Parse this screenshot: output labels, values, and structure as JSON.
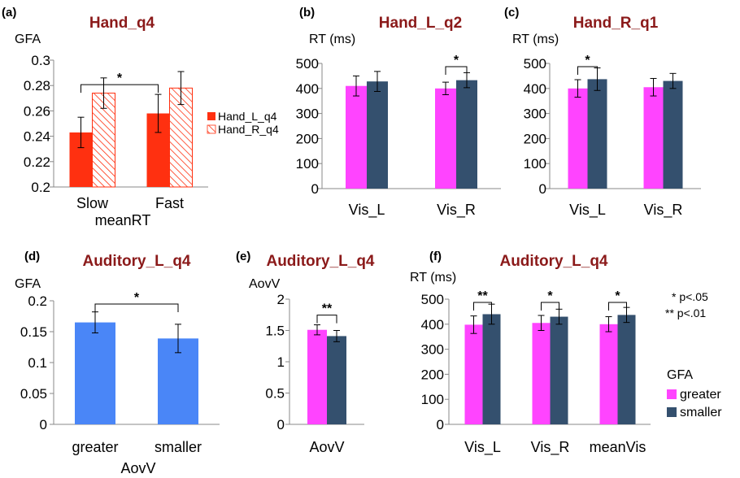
{
  "colors": {
    "title": "#8b1a1a",
    "red": "#ff3010",
    "redHatch": "#ff3010",
    "magenta": "#ff44ff",
    "navy": "#34506e",
    "blue": "#4a86f7",
    "axis": "#888888"
  },
  "notes": [
    "* p<.05",
    "** p<.01"
  ],
  "legend_f": {
    "title": "GFA",
    "items": [
      "greater",
      "smaller"
    ]
  },
  "chart_data": [
    {
      "id": "a",
      "panel_label": "(a)",
      "type": "bar",
      "title": "Hand_q4",
      "ylabel": "GFA",
      "xlabel": "meanRT",
      "ylim": [
        0.2,
        0.3
      ],
      "ytick_step": 0.02,
      "ytick_labels": [
        "0.2",
        "0.22",
        "0.24",
        "0.26",
        "0.28",
        "0.3"
      ],
      "categories": [
        "Slow",
        "Fast"
      ],
      "series": [
        {
          "name": "Hand_L_q4",
          "style": "red",
          "values": [
            0.243,
            0.258
          ],
          "errors": [
            0.012,
            0.015
          ]
        },
        {
          "name": "Hand_R_q4",
          "style": "hatch",
          "values": [
            0.274,
            0.278
          ],
          "errors": [
            0.012,
            0.013
          ]
        }
      ],
      "legend": [
        "Hand_L_q4",
        "Hand_R_q4"
      ],
      "significance": [
        {
          "label": "*",
          "from": [
            0,
            0
          ],
          "to": [
            1,
            0
          ]
        }
      ]
    },
    {
      "id": "b",
      "panel_label": "(b)",
      "type": "bar",
      "title": "Hand_L_q2",
      "ylabel": "RT (ms)",
      "ylim": [
        0,
        500
      ],
      "ytick_step": 100,
      "ytick_labels": [
        "0",
        "100",
        "200",
        "300",
        "400",
        "500"
      ],
      "categories": [
        "Vis_L",
        "Vis_R"
      ],
      "series": [
        {
          "name": "greater",
          "style": "magenta",
          "values": [
            410,
            400
          ],
          "errors": [
            40,
            25
          ]
        },
        {
          "name": "smaller",
          "style": "navy",
          "values": [
            428,
            433
          ],
          "errors": [
            40,
            30
          ]
        }
      ],
      "significance": [
        {
          "label": "*",
          "from": [
            1,
            0
          ],
          "to": [
            1,
            1
          ]
        }
      ]
    },
    {
      "id": "c",
      "panel_label": "(c)",
      "type": "bar",
      "title": "Hand_R_q1",
      "ylabel": "RT (ms)",
      "ylim": [
        0,
        500
      ],
      "ytick_step": 100,
      "ytick_labels": [
        "0",
        "100",
        "200",
        "300",
        "400",
        "500"
      ],
      "categories": [
        "Vis_L",
        "Vis_R"
      ],
      "series": [
        {
          "name": "greater",
          "style": "magenta",
          "values": [
            400,
            405
          ],
          "errors": [
            35,
            35
          ]
        },
        {
          "name": "smaller",
          "style": "navy",
          "values": [
            437,
            430
          ],
          "errors": [
            45,
            30
          ]
        }
      ],
      "significance": [
        {
          "label": "*",
          "from": [
            0,
            0
          ],
          "to": [
            0,
            1
          ]
        }
      ]
    },
    {
      "id": "d",
      "panel_label": "(d)",
      "type": "bar",
      "title": "Auditory_L_q4",
      "ylabel": "GFA",
      "xlabel": "AovV",
      "ylim": [
        0,
        0.2
      ],
      "ytick_step": 0.05,
      "ytick_labels": [
        "0",
        "0.05",
        "0.1",
        "0.15",
        "0.2"
      ],
      "categories": [
        "greater",
        "smaller"
      ],
      "series": [
        {
          "name": "GFA",
          "style": "blue",
          "values": [
            0.165,
            0.139
          ],
          "errors": [
            0.017,
            0.023
          ]
        }
      ],
      "significance": [
        {
          "label": "*",
          "from": [
            0,
            0
          ],
          "to": [
            1,
            0
          ]
        }
      ]
    },
    {
      "id": "e",
      "panel_label": "(e)",
      "type": "bar",
      "title": "Auditory_L_q4",
      "ylabel": "AovV",
      "ylim": [
        0,
        2
      ],
      "ytick_step": 0.5,
      "ytick_labels": [
        "0",
        "0.5",
        "1",
        "1.5",
        "2"
      ],
      "categories": [
        "AovV"
      ],
      "series": [
        {
          "name": "greater",
          "style": "magenta",
          "values": [
            1.51
          ],
          "errors": [
            0.08
          ]
        },
        {
          "name": "smaller",
          "style": "navy",
          "values": [
            1.41
          ],
          "errors": [
            0.09
          ]
        }
      ],
      "significance": [
        {
          "label": "**",
          "from": [
            0,
            0
          ],
          "to": [
            0,
            1
          ]
        }
      ]
    },
    {
      "id": "f",
      "panel_label": "(f)",
      "type": "bar",
      "title": "Auditory_L_q4",
      "ylabel": "RT (ms)",
      "ylim": [
        0,
        500
      ],
      "ytick_step": 100,
      "ytick_labels": [
        "0",
        "100",
        "200",
        "300",
        "400",
        "500"
      ],
      "categories": [
        "Vis_L",
        "Vis_R",
        "meanVis"
      ],
      "series": [
        {
          "name": "greater",
          "style": "magenta",
          "values": [
            398,
            405,
            400
          ],
          "errors": [
            35,
            30,
            30
          ]
        },
        {
          "name": "smaller",
          "style": "navy",
          "values": [
            440,
            430,
            437
          ],
          "errors": [
            40,
            30,
            30
          ]
        }
      ],
      "significance": [
        {
          "label": "**",
          "from": [
            0,
            0
          ],
          "to": [
            0,
            1
          ]
        },
        {
          "label": "*",
          "from": [
            1,
            0
          ],
          "to": [
            1,
            1
          ]
        },
        {
          "label": "*",
          "from": [
            2,
            0
          ],
          "to": [
            2,
            1
          ]
        }
      ]
    }
  ]
}
